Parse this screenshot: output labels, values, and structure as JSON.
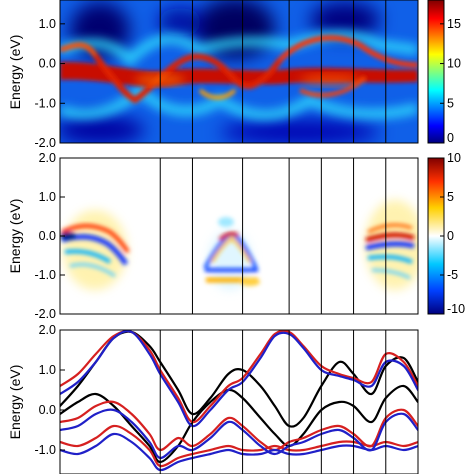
{
  "chart_data": [
    {
      "type": "heatmap",
      "panel": "top",
      "ylabel": "Energy (eV)",
      "ylim": [
        -2.0,
        1.6
      ],
      "y_ticks": [
        "1.0",
        "0.0",
        "-1.0",
        "-2.0"
      ],
      "y_tick_values": [
        1.0,
        0.0,
        -1.0,
        -2.0
      ],
      "k_dividers": [
        0.28,
        0.37,
        0.51,
        0.64,
        0.73,
        0.82,
        0.91
      ],
      "colorbar": {
        "min": 0,
        "max": 18,
        "ticks": [
          "15",
          "10",
          "5",
          "0"
        ],
        "tick_values": [
          15,
          10,
          5,
          0
        ],
        "colormap": "jet"
      }
    },
    {
      "type": "heatmap",
      "panel": "middle",
      "ylabel": "Energy (eV)",
      "ylim": [
        -2.0,
        2.0
      ],
      "y_ticks": [
        "2.0",
        "1.0",
        "0.0",
        "-1.0",
        "-2.0"
      ],
      "y_tick_values": [
        2.0,
        1.0,
        0.0,
        -1.0,
        -2.0
      ],
      "k_dividers": [
        0.28,
        0.37,
        0.51,
        0.64,
        0.73,
        0.82,
        0.91
      ],
      "colorbar": {
        "min": -10,
        "max": 10,
        "ticks": [
          "10",
          "5",
          "0",
          "-5",
          "-10"
        ],
        "tick_values": [
          10,
          5,
          0,
          -5,
          -10
        ],
        "colormap": "diverging"
      }
    },
    {
      "type": "line",
      "panel": "bottom",
      "ylabel": "Energy (eV)",
      "ylim": [
        -1.6,
        2.0
      ],
      "y_ticks": [
        "2.0",
        "1.0",
        "0.0",
        "-1.0"
      ],
      "y_tick_values": [
        2.0,
        1.0,
        0.0,
        -1.0
      ],
      "k_dividers": [
        0.28,
        0.37,
        0.51,
        0.64,
        0.73,
        0.82,
        0.91
      ],
      "series_colors": {
        "black": "#000000",
        "red": "#d62020",
        "blue": "#2020c8"
      },
      "x": [
        0,
        0.05,
        0.1,
        0.15,
        0.2,
        0.25,
        0.28,
        0.33,
        0.37,
        0.42,
        0.47,
        0.51,
        0.56,
        0.6,
        0.64,
        0.68,
        0.73,
        0.78,
        0.82,
        0.87,
        0.91,
        0.96,
        1.0
      ],
      "series": [
        {
          "color": "black",
          "values": [
            0.1,
            0.6,
            1.2,
            1.8,
            1.95,
            1.6,
            1.2,
            0.5,
            -0.1,
            0.3,
            0.9,
            1.0,
            0.6,
            0.1,
            -0.4,
            -0.2,
            0.6,
            1.2,
            0.9,
            0.4,
            1.1,
            1.3,
            0.7
          ]
        },
        {
          "color": "black",
          "values": [
            -0.1,
            0.2,
            0.4,
            0.1,
            -0.4,
            -0.9,
            -1.3,
            -0.9,
            -0.3,
            0.2,
            0.5,
            0.3,
            -0.2,
            -0.6,
            -0.9,
            -0.6,
            0.0,
            0.2,
            0.1,
            -0.3,
            0.3,
            0.6,
            0.2
          ]
        },
        {
          "color": "red",
          "values": [
            0.6,
            0.9,
            1.4,
            1.85,
            1.95,
            1.5,
            1.0,
            0.3,
            -0.3,
            0.1,
            0.6,
            0.8,
            1.4,
            1.9,
            1.95,
            1.6,
            1.1,
            0.9,
            0.8,
            0.7,
            1.4,
            1.2,
            0.6
          ]
        },
        {
          "color": "red",
          "values": [
            -0.3,
            -0.2,
            0.1,
            0.2,
            -0.1,
            -0.6,
            -1.0,
            -0.7,
            -0.9,
            -0.6,
            -0.2,
            -0.4,
            -0.8,
            -1.0,
            -0.8,
            -0.7,
            -0.5,
            -0.4,
            -0.6,
            -0.9,
            -0.2,
            0.0,
            -0.4
          ]
        },
        {
          "color": "red",
          "values": [
            -0.8,
            -0.9,
            -0.7,
            -0.4,
            -0.6,
            -1.0,
            -1.4,
            -1.2,
            -1.1,
            -1.0,
            -0.9,
            -1.0,
            -1.0,
            -0.9,
            -1.0,
            -1.0,
            -0.9,
            -0.8,
            -0.8,
            -0.9,
            -0.8,
            -0.9,
            -0.8
          ]
        },
        {
          "color": "blue",
          "values": [
            0.4,
            0.7,
            1.2,
            1.8,
            1.95,
            1.4,
            0.9,
            0.2,
            -0.4,
            0.0,
            0.5,
            0.7,
            1.3,
            1.85,
            1.9,
            1.55,
            1.0,
            0.85,
            0.75,
            0.6,
            1.2,
            1.1,
            0.5
          ]
        },
        {
          "color": "blue",
          "values": [
            -0.5,
            -0.4,
            -0.1,
            0.0,
            -0.3,
            -0.8,
            -1.2,
            -0.9,
            -1.0,
            -0.7,
            -0.3,
            -0.5,
            -0.9,
            -1.1,
            -0.9,
            -0.8,
            -0.6,
            -0.5,
            -0.7,
            -1.0,
            -0.3,
            -0.1,
            -0.5
          ]
        },
        {
          "color": "blue",
          "values": [
            -1.0,
            -1.1,
            -0.9,
            -0.6,
            -0.8,
            -1.2,
            -1.5,
            -1.3,
            -1.2,
            -1.1,
            -1.0,
            -1.1,
            -1.1,
            -1.0,
            -1.1,
            -1.1,
            -1.0,
            -0.9,
            -0.9,
            -1.0,
            -0.9,
            -1.0,
            -0.9
          ]
        }
      ]
    }
  ]
}
